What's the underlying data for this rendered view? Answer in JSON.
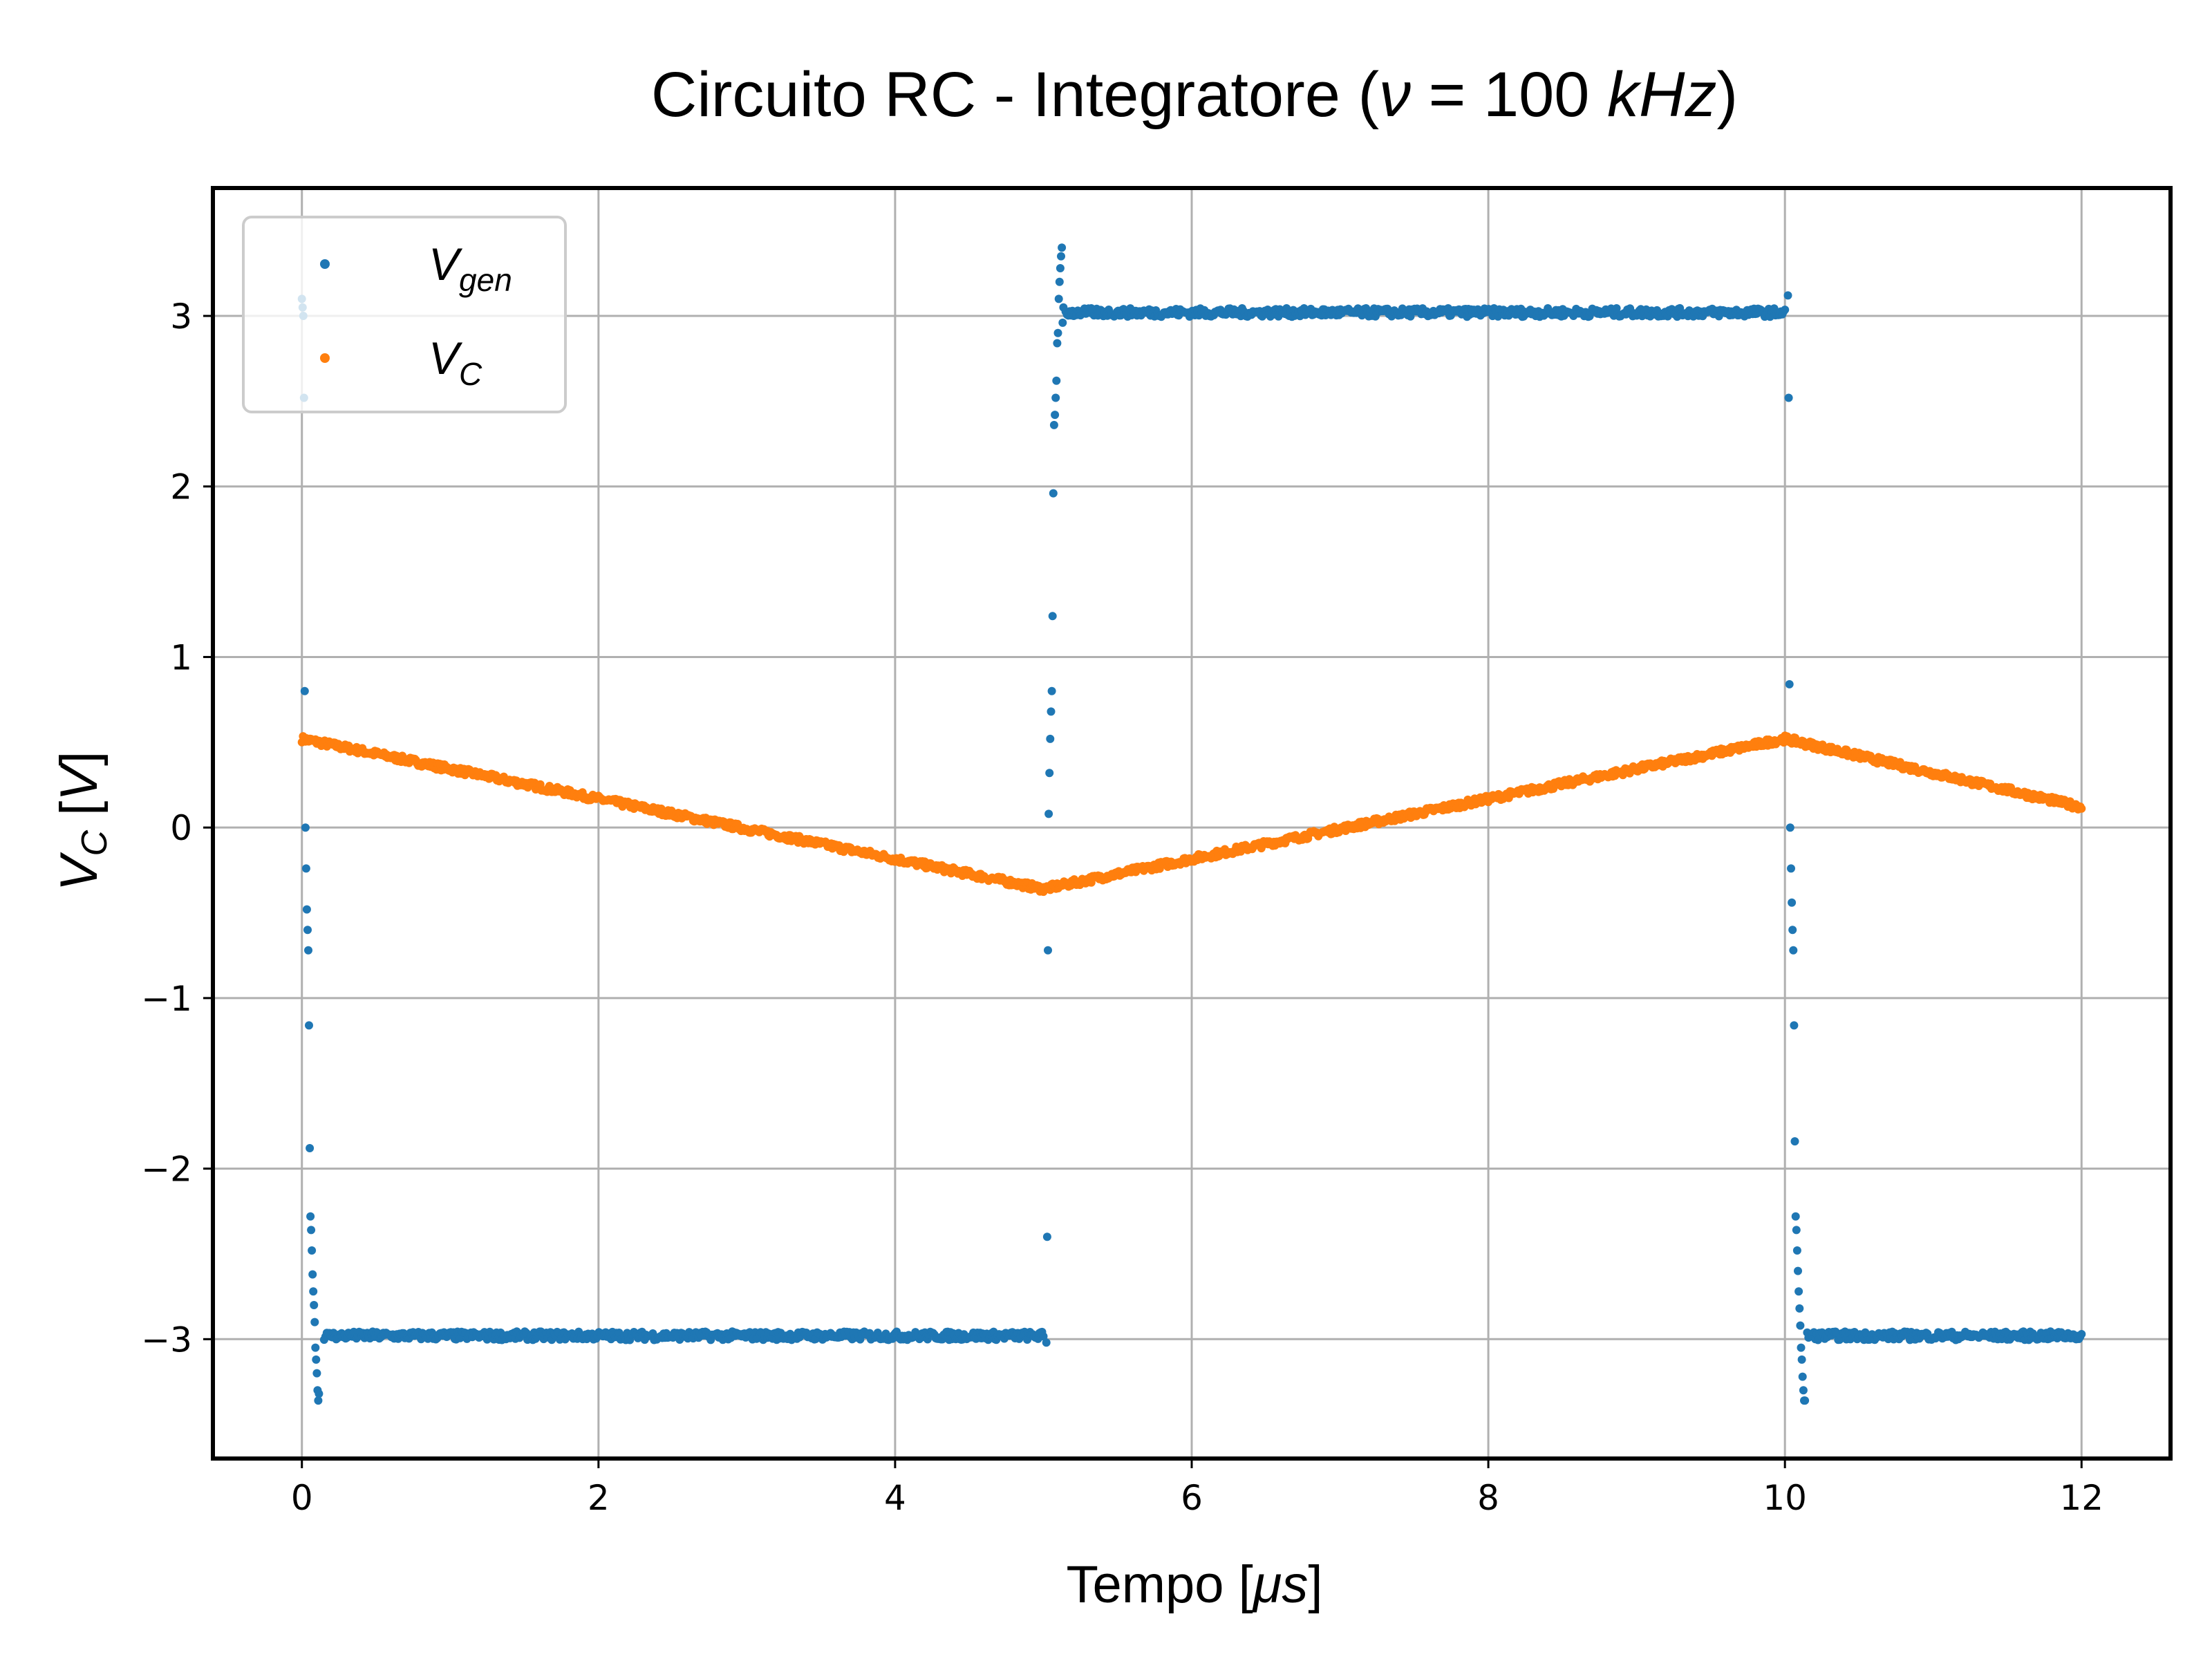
{
  "chart_data": {
    "type": "scatter",
    "title": "Circuito RC - Integratore (ν = 100 kHz)",
    "title_parts": {
      "pre": "Circuito RC - Integratore (",
      "nu": "ν",
      "eq": " = 100 ",
      "unit": "kHz",
      "post": ")"
    },
    "xlabel": "Tempo [μs]",
    "xlabel_parts": {
      "pre": "Tempo [",
      "mu": "μs",
      "post": "]"
    },
    "ylabel": "V_C [V]",
    "ylabel_parts": {
      "v": "V",
      "sub": "C",
      "pre": " [",
      "unit": "V",
      "post": "]"
    },
    "xlim": [
      -0.6,
      12.6
    ],
    "ylim": [
      -3.7,
      3.75
    ],
    "x_ticks": [
      0,
      2,
      4,
      6,
      8,
      10,
      12
    ],
    "x_tick_labels": [
      "0",
      "2",
      "4",
      "6",
      "8",
      "10",
      "12"
    ],
    "y_ticks": [
      -3,
      -2,
      -1,
      0,
      1,
      2,
      3
    ],
    "y_tick_labels": [
      "−3",
      "−2",
      "−1",
      "0",
      "1",
      "2",
      "3"
    ],
    "grid": true,
    "legend_position": "upper-left",
    "series": [
      {
        "name": "V_gen",
        "label_main": "V",
        "label_sub": "gen",
        "color": "#1f77b4",
        "segments": [
          {
            "x_start": 0.15,
            "x_end": 5.0,
            "y": -2.98
          },
          {
            "x_start": 5.15,
            "x_end": 10.0,
            "y": 3.02
          },
          {
            "x_start": 10.15,
            "x_end": 12.0,
            "y": -2.98
          }
        ],
        "transitions": [
          {
            "x": 0.0,
            "y_values": [
              3.1,
              3.05,
              3.0,
              2.52,
              0.8,
              0.0,
              -0.24,
              -0.48,
              -0.6,
              -0.72,
              -1.16,
              -1.88,
              -2.28,
              -2.36,
              -2.48,
              -2.62,
              -2.72,
              -2.8,
              -2.9,
              -3.05,
              -3.12,
              -3.2,
              -3.3,
              -3.36,
              -3.32
            ]
          },
          {
            "x": 5.02,
            "y_values": [
              -3.02,
              -2.4,
              -0.72,
              0.08,
              0.32,
              0.52,
              0.68,
              0.8,
              1.24,
              1.96,
              2.36,
              2.42,
              2.52,
              2.62,
              2.84,
              2.9,
              3.1,
              3.2,
              3.28,
              3.35,
              3.4,
              2.96,
              3.05
            ]
          },
          {
            "x": 10.02,
            "y_values": [
              3.12,
              2.52,
              0.84,
              0.0,
              -0.24,
              -0.44,
              -0.6,
              -0.72,
              -1.16,
              -1.84,
              -2.28,
              -2.36,
              -2.48,
              -2.6,
              -2.72,
              -2.82,
              -2.92,
              -3.05,
              -3.12,
              -3.22,
              -3.3,
              -3.36,
              -3.36
            ]
          }
        ]
      },
      {
        "name": "V_C",
        "label_main": "V",
        "label_sub": "C",
        "color": "#ff7f0e",
        "x": [
          0.0,
          5.0,
          10.0,
          12.0
        ],
        "y": [
          0.52,
          -0.36,
          0.52,
          0.12
        ]
      }
    ]
  }
}
